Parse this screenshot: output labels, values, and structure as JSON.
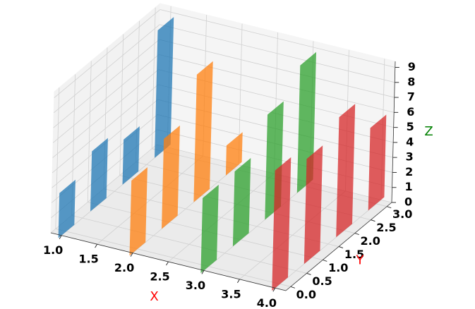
{
  "chart_data": {
    "type": "bar3d",
    "xlabel": "X",
    "xlabel_color": "#ff0000",
    "ylabel": "Y",
    "ylabel_color": "#ff0000",
    "zlabel": "Z",
    "zlabel_color": "#008000",
    "xlim": [
      0.85,
      4.15
    ],
    "ylim": [
      -0.15,
      3.15
    ],
    "zlim": [
      0,
      9.4
    ],
    "xticks": [
      {
        "value": 1,
        "label": "1.0"
      },
      {
        "value": 1.5,
        "label": "1.5"
      },
      {
        "value": 2,
        "label": "2.0"
      },
      {
        "value": 2.5,
        "label": "2.5"
      },
      {
        "value": 3,
        "label": "3.0"
      },
      {
        "value": 3.5,
        "label": "3.5"
      },
      {
        "value": 4,
        "label": "4.0"
      }
    ],
    "yticks": [
      {
        "value": 0,
        "label": "0.0"
      },
      {
        "value": 0.5,
        "label": "0.5"
      },
      {
        "value": 1,
        "label": "1.0"
      },
      {
        "value": 1.5,
        "label": "1.5"
      },
      {
        "value": 2,
        "label": "2.0"
      },
      {
        "value": 2.5,
        "label": "2.5"
      },
      {
        "value": 3,
        "label": "3.0"
      }
    ],
    "zticks": [
      0,
      1,
      2,
      3,
      4,
      5,
      6,
      7,
      8,
      9
    ],
    "grid": true,
    "y": [
      0,
      1,
      2,
      3
    ],
    "series": [
      {
        "x": 1,
        "color": "#1f77b4",
        "values": [
          3,
          4,
          3,
          8.5
        ]
      },
      {
        "x": 2,
        "color": "#ff7f0e",
        "values": [
          5,
          6,
          8.5,
          2
        ]
      },
      {
        "x": 3,
        "color": "#2ca02c",
        "values": [
          5,
          5,
          7,
          8.5
        ]
      },
      {
        "x": 4,
        "color": "#d62728",
        "values": [
          8,
          7,
          8,
          5.5
        ]
      }
    ]
  }
}
